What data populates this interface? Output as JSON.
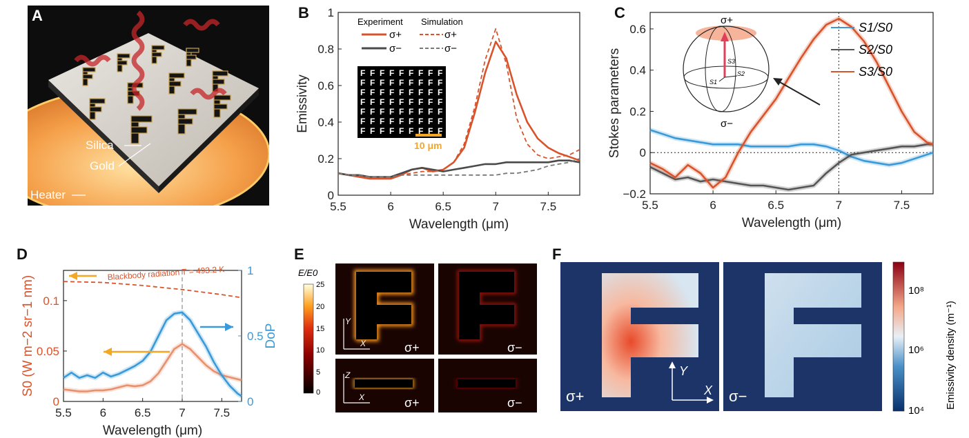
{
  "panels": {
    "A": {
      "label": "A",
      "silica": "Silica",
      "gold": "Gold",
      "heater": "Heater"
    },
    "B": {
      "label": "B"
    },
    "C": {
      "label": "C"
    },
    "D": {
      "label": "D"
    },
    "E": {
      "label": "E",
      "colorbar_title": "E/E0",
      "colorbar_ticks": [
        "25",
        "20",
        "15",
        "10",
        "5",
        "0"
      ],
      "cells": [
        {
          "pol": "σ+",
          "ax1": "X",
          "ax2": "Y"
        },
        {
          "pol": "σ−"
        },
        {
          "pol": "σ+",
          "ax1": "X",
          "ax2": "Z"
        },
        {
          "pol": "σ−"
        }
      ]
    },
    "F": {
      "label": "F",
      "left_pol": "σ+",
      "right_pol": "σ−",
      "axis_x": "X",
      "axis_y": "Y",
      "colorbar_label": "Emissivity density (m⁻¹)",
      "colorbar_ticks": [
        "10⁸",
        "10⁶",
        "10⁴"
      ]
    }
  },
  "chart_data": [
    {
      "id": "B",
      "type": "line",
      "xlabel": "Wavelength (μm)",
      "ylabel": "Emissivity",
      "xlim": [
        5.5,
        7.8
      ],
      "ylim": [
        0,
        1
      ],
      "xticks": [
        "5.5",
        "6",
        "6.5",
        "7",
        "7.5"
      ],
      "yticks": [
        "0",
        "0.2",
        "0.4",
        "0.6",
        "0.8",
        "1"
      ],
      "legend_headers": [
        "Experiment",
        "Simulation"
      ],
      "inset_scale_label": "10 μm",
      "series": [
        {
          "name": "σ+",
          "group": "Experiment",
          "color": "#d9532a",
          "dash": false,
          "x": [
            5.5,
            5.6,
            5.7,
            5.8,
            5.9,
            6.0,
            6.1,
            6.2,
            6.3,
            6.4,
            6.5,
            6.6,
            6.7,
            6.8,
            6.9,
            7.0,
            7.1,
            7.2,
            7.3,
            7.4,
            7.5,
            7.6,
            7.7,
            7.8
          ],
          "y": [
            0.12,
            0.11,
            0.1,
            0.09,
            0.09,
            0.09,
            0.11,
            0.14,
            0.15,
            0.13,
            0.14,
            0.18,
            0.26,
            0.45,
            0.67,
            0.84,
            0.75,
            0.55,
            0.4,
            0.31,
            0.26,
            0.23,
            0.21,
            0.19
          ]
        },
        {
          "name": "σ−",
          "group": "Experiment",
          "color": "#4a4a4a",
          "dash": false,
          "x": [
            5.5,
            5.6,
            5.7,
            5.8,
            5.9,
            6.0,
            6.1,
            6.2,
            6.3,
            6.4,
            6.5,
            6.6,
            6.7,
            6.8,
            6.9,
            7.0,
            7.1,
            7.2,
            7.3,
            7.4,
            7.5,
            7.6,
            7.7,
            7.8
          ],
          "y": [
            0.12,
            0.11,
            0.11,
            0.1,
            0.1,
            0.1,
            0.12,
            0.14,
            0.15,
            0.14,
            0.13,
            0.14,
            0.15,
            0.16,
            0.17,
            0.17,
            0.18,
            0.18,
            0.18,
            0.18,
            0.18,
            0.19,
            0.19,
            0.18
          ]
        },
        {
          "name": "σ+",
          "group": "Simulation",
          "color": "#d9532a",
          "dash": true,
          "x": [
            5.5,
            5.6,
            5.7,
            5.8,
            5.9,
            6.0,
            6.1,
            6.2,
            6.3,
            6.4,
            6.5,
            6.6,
            6.7,
            6.8,
            6.9,
            7.0,
            7.1,
            7.2,
            7.3,
            7.4,
            7.5,
            7.6,
            7.7,
            7.8
          ],
          "y": [
            0.12,
            0.11,
            0.1,
            0.1,
            0.1,
            0.1,
            0.11,
            0.12,
            0.13,
            0.13,
            0.14,
            0.18,
            0.28,
            0.48,
            0.74,
            0.91,
            0.72,
            0.42,
            0.28,
            0.22,
            0.2,
            0.21,
            0.22,
            0.25
          ]
        },
        {
          "name": "σ−",
          "group": "Simulation",
          "color": "#777777",
          "dash": true,
          "x": [
            5.5,
            5.6,
            5.7,
            5.8,
            5.9,
            6.0,
            6.1,
            6.2,
            6.3,
            6.4,
            6.5,
            6.6,
            6.7,
            6.8,
            6.9,
            7.0,
            7.1,
            7.2,
            7.3,
            7.4,
            7.5,
            7.6,
            7.7,
            7.8
          ],
          "y": [
            0.12,
            0.11,
            0.11,
            0.1,
            0.1,
            0.1,
            0.11,
            0.11,
            0.11,
            0.11,
            0.11,
            0.11,
            0.11,
            0.11,
            0.11,
            0.11,
            0.12,
            0.12,
            0.13,
            0.14,
            0.16,
            0.17,
            0.18,
            0.2
          ]
        }
      ]
    },
    {
      "id": "C",
      "type": "line",
      "xlabel": "Wavelength (μm)",
      "ylabel": "Stokes parameters",
      "xlim": [
        5.5,
        7.75
      ],
      "ylim": [
        -0.2,
        0.68
      ],
      "xticks": [
        "5.5",
        "6",
        "6.5",
        "7",
        "7.5"
      ],
      "yticks": [
        "−0.2",
        "0",
        "0.2",
        "0.4",
        "0.6"
      ],
      "vline_x": 7.0,
      "hline_y": 0,
      "sphere_labels": {
        "top": "σ+",
        "bottom": "σ−",
        "s1": "S1",
        "s2": "S2",
        "s3": "S3"
      },
      "series": [
        {
          "name": "S1/S0",
          "color": "#3a9ad9",
          "x": [
            5.5,
            5.6,
            5.7,
            5.8,
            5.9,
            6.0,
            6.1,
            6.2,
            6.3,
            6.4,
            6.5,
            6.6,
            6.7,
            6.8,
            6.9,
            7.0,
            7.1,
            7.2,
            7.3,
            7.4,
            7.5,
            7.6,
            7.7,
            7.75
          ],
          "y": [
            0.11,
            0.09,
            0.07,
            0.06,
            0.05,
            0.04,
            0.04,
            0.04,
            0.03,
            0.03,
            0.03,
            0.03,
            0.04,
            0.04,
            0.03,
            0.01,
            -0.02,
            -0.04,
            -0.05,
            -0.06,
            -0.05,
            -0.03,
            -0.01,
            0.0
          ]
        },
        {
          "name": "S2/S0",
          "color": "#555555",
          "x": [
            5.5,
            5.6,
            5.7,
            5.8,
            5.9,
            6.0,
            6.1,
            6.2,
            6.3,
            6.4,
            6.5,
            6.6,
            6.7,
            6.8,
            6.9,
            7.0,
            7.1,
            7.2,
            7.3,
            7.4,
            7.5,
            7.6,
            7.7,
            7.75
          ],
          "y": [
            -0.07,
            -0.1,
            -0.13,
            -0.12,
            -0.14,
            -0.13,
            -0.14,
            -0.15,
            -0.16,
            -0.16,
            -0.17,
            -0.18,
            -0.17,
            -0.16,
            -0.1,
            -0.05,
            -0.01,
            0.0,
            0.01,
            0.02,
            0.03,
            0.03,
            0.04,
            0.04
          ]
        },
        {
          "name": "S3/S0",
          "color": "#d9532a",
          "x": [
            5.5,
            5.6,
            5.7,
            5.8,
            5.9,
            6.0,
            6.1,
            6.2,
            6.3,
            6.4,
            6.5,
            6.6,
            6.7,
            6.8,
            6.9,
            7.0,
            7.1,
            7.2,
            7.3,
            7.4,
            7.5,
            7.6,
            7.7,
            7.75
          ],
          "y": [
            -0.05,
            -0.08,
            -0.12,
            -0.06,
            -0.1,
            -0.17,
            -0.12,
            0.0,
            0.1,
            0.18,
            0.26,
            0.36,
            0.46,
            0.55,
            0.62,
            0.65,
            0.61,
            0.54,
            0.44,
            0.32,
            0.2,
            0.1,
            0.05,
            0.04
          ]
        }
      ]
    },
    {
      "id": "D",
      "type": "line",
      "xlabel": "Wavelength (μm)",
      "ylabel_left": "S0 (W m−2 sr−1 nm)",
      "ylabel_right": "DoP",
      "xlim": [
        5.5,
        7.75
      ],
      "ylim_left": [
        0,
        0.13
      ],
      "ylim_right": [
        0,
        1
      ],
      "xticks": [
        "5.5",
        "6",
        "6.5",
        "7",
        "7.5"
      ],
      "yticks_left": [
        "0",
        "0.05",
        "0.1"
      ],
      "yticks_right": [
        "0",
        "0.5",
        "1"
      ],
      "vline_x": 7.0,
      "annotation": "Blackbody radiation T = 493.2 K",
      "series": [
        {
          "name": "Blackbody radiation",
          "axis": "left",
          "color": "#d9532a",
          "dash": true,
          "x": [
            5.5,
            6.0,
            6.5,
            7.0,
            7.5,
            7.75
          ],
          "y": [
            0.119,
            0.118,
            0.115,
            0.111,
            0.106,
            0.103
          ]
        },
        {
          "name": "S0",
          "axis": "left",
          "color": "#e8916e",
          "dash": false,
          "x": [
            5.5,
            5.6,
            5.7,
            5.8,
            5.9,
            6.0,
            6.1,
            6.2,
            6.3,
            6.4,
            6.5,
            6.6,
            6.7,
            6.8,
            6.9,
            7.0,
            7.1,
            7.2,
            7.3,
            7.4,
            7.5,
            7.6,
            7.7,
            7.75
          ],
          "y": [
            0.012,
            0.011,
            0.01,
            0.01,
            0.011,
            0.011,
            0.012,
            0.014,
            0.016,
            0.015,
            0.016,
            0.02,
            0.028,
            0.04,
            0.052,
            0.057,
            0.052,
            0.044,
            0.036,
            0.03,
            0.026,
            0.024,
            0.022,
            0.021
          ]
        },
        {
          "name": "DoP",
          "axis": "right",
          "color": "#3a9ad9",
          "dash": false,
          "x": [
            5.5,
            5.6,
            5.7,
            5.8,
            5.9,
            6.0,
            6.1,
            6.2,
            6.3,
            6.4,
            6.5,
            6.6,
            6.7,
            6.8,
            6.9,
            7.0,
            7.1,
            7.2,
            7.3,
            7.4,
            7.5,
            7.6,
            7.7,
            7.75
          ],
          "y": [
            0.18,
            0.22,
            0.18,
            0.2,
            0.18,
            0.22,
            0.19,
            0.21,
            0.24,
            0.27,
            0.31,
            0.38,
            0.5,
            0.62,
            0.67,
            0.68,
            0.62,
            0.52,
            0.42,
            0.3,
            0.2,
            0.12,
            0.06,
            0.04
          ]
        }
      ],
      "arrows": [
        {
          "name": "orange-top",
          "color": "#f5a623",
          "direction": "left"
        },
        {
          "name": "orange-mid",
          "color": "#f5a623",
          "direction": "left"
        },
        {
          "name": "blue",
          "color": "#3a9ad9",
          "direction": "right"
        }
      ]
    }
  ],
  "colors": {
    "orange": "#d9532a",
    "blue": "#3a9ad9",
    "gray": "#4a4a4a",
    "navy": "#1c3468",
    "gold": "#f5a623"
  }
}
